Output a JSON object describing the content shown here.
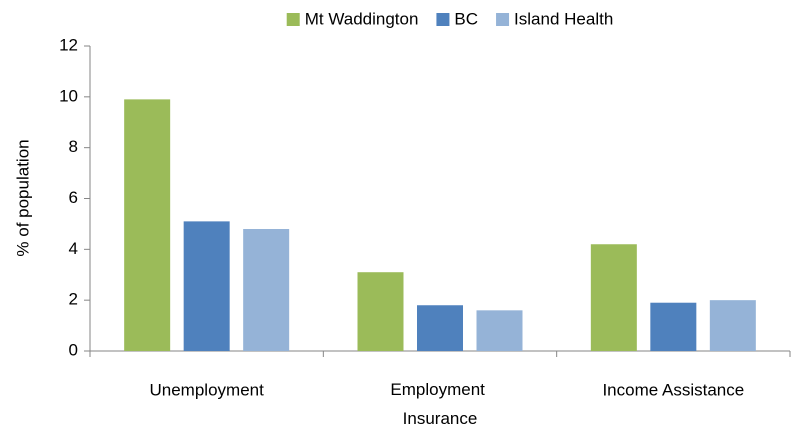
{
  "chart_data": {
    "type": "bar",
    "y_label": "% of population",
    "categories": [
      "Unemployment",
      "Employment Insurance",
      "Income Assistance"
    ],
    "series": [
      {
        "name": "Mt Waddington",
        "color": "#9bbb59",
        "values": [
          9.9,
          3.1,
          4.2
        ]
      },
      {
        "name": "BC",
        "color": "#4f81bd",
        "values": [
          5.1,
          1.8,
          1.9
        ]
      },
      {
        "name": "Island Health",
        "color": "#95b3d7",
        "values": [
          4.8,
          1.6,
          2.0
        ]
      }
    ],
    "ylim": [
      0,
      12
    ],
    "yticks": [
      0,
      2,
      4,
      6,
      8,
      10,
      12
    ],
    "grid": false,
    "legend": "top"
  }
}
